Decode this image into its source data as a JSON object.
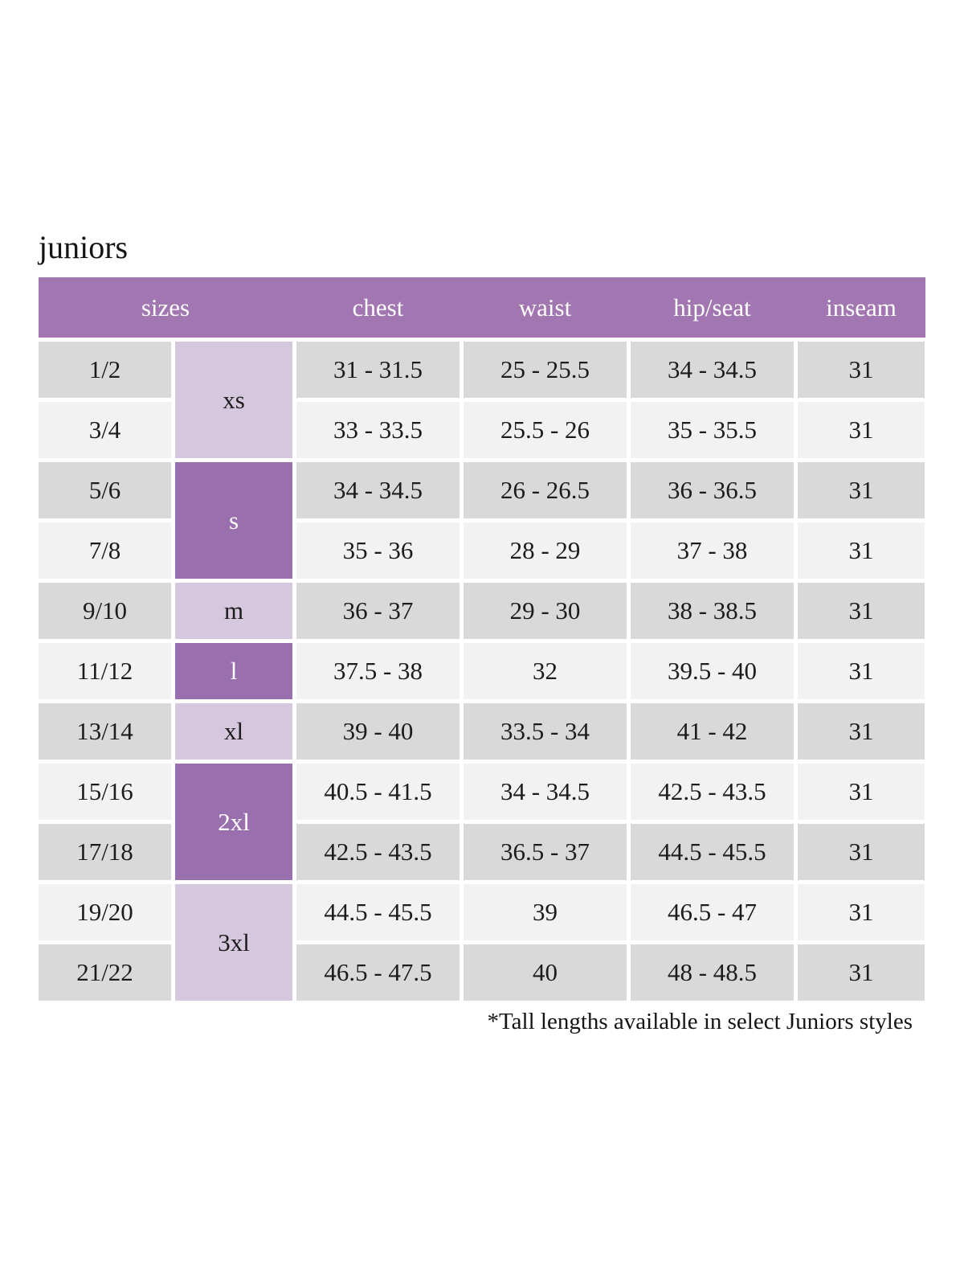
{
  "page": {
    "title": "juniors",
    "footnote": "*Tall lengths available in select Juniors styles"
  },
  "table": {
    "headers": {
      "sizes": "sizes",
      "chest": "chest",
      "waist": "waist",
      "hip_seat": "hip/seat",
      "inseam": "inseam"
    },
    "size_groups": [
      {
        "label": "xs",
        "rows": [
          "1/2",
          "3/4"
        ],
        "shade": "light"
      },
      {
        "label": "s",
        "rows": [
          "5/6",
          "7/8"
        ],
        "shade": "dark"
      },
      {
        "label": "m",
        "rows": [
          "9/10"
        ],
        "shade": "light"
      },
      {
        "label": "l",
        "rows": [
          "11/12"
        ],
        "shade": "dark"
      },
      {
        "label": "xl",
        "rows": [
          "13/14"
        ],
        "shade": "light"
      },
      {
        "label": "2xl",
        "rows": [
          "15/16",
          "17/18"
        ],
        "shade": "dark"
      },
      {
        "label": "3xl",
        "rows": [
          "19/20",
          "21/22"
        ],
        "shade": "light"
      }
    ],
    "rows": [
      {
        "size": "1/2",
        "chest": "31 - 31.5",
        "waist": "25 - 25.5",
        "hip_seat": "34 - 34.5",
        "inseam": "31"
      },
      {
        "size": "3/4",
        "chest": "33 - 33.5",
        "waist": "25.5 - 26",
        "hip_seat": "35 - 35.5",
        "inseam": "31"
      },
      {
        "size": "5/6",
        "chest": "34 - 34.5",
        "waist": "26 - 26.5",
        "hip_seat": "36 - 36.5",
        "inseam": "31"
      },
      {
        "size": "7/8",
        "chest": "35 - 36",
        "waist": "28 - 29",
        "hip_seat": "37 - 38",
        "inseam": "31"
      },
      {
        "size": "9/10",
        "chest": "36 - 37",
        "waist": "29 - 30",
        "hip_seat": "38 - 38.5",
        "inseam": "31"
      },
      {
        "size": "11/12",
        "chest": "37.5 - 38",
        "waist": "32",
        "hip_seat": "39.5 - 40",
        "inseam": "31"
      },
      {
        "size": "13/14",
        "chest": "39 - 40",
        "waist": "33.5 - 34",
        "hip_seat": "41 - 42",
        "inseam": "31"
      },
      {
        "size": "15/16",
        "chest": "40.5 - 41.5",
        "waist": "34 - 34.5",
        "hip_seat": "42.5 - 43.5",
        "inseam": "31"
      },
      {
        "size": "17/18",
        "chest": "42.5 - 43.5",
        "waist": "36.5 - 37",
        "hip_seat": "44.5 - 45.5",
        "inseam": "31"
      },
      {
        "size": "19/20",
        "chest": "44.5 - 45.5",
        "waist": "39",
        "hip_seat": "46.5 - 47",
        "inseam": "31"
      },
      {
        "size": "21/22",
        "chest": "46.5 - 47.5",
        "waist": "40",
        "hip_seat": "48 - 48.5",
        "inseam": "31"
      }
    ],
    "colors": {
      "header_bg": "#a277b1",
      "group_dark_bg": "#9a6fad",
      "group_light_bg": "#d4c7de",
      "row_gray": "#d9d9d9",
      "row_light": "#f2f2f2",
      "header_text": "#ffffff",
      "body_text": "#1c1c1c"
    }
  }
}
